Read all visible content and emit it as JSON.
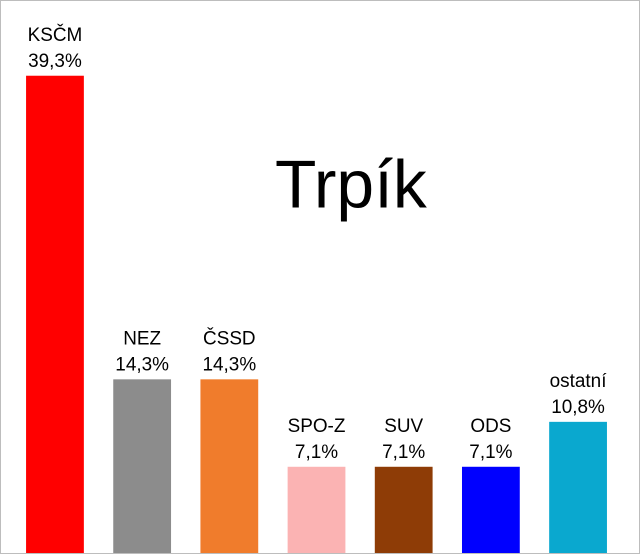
{
  "chart_data": {
    "type": "bar",
    "title": "Trpík",
    "categories": [
      "KSČM",
      "NEZ",
      "ČSSD",
      "SPO-Z",
      "SUV",
      "ODS",
      "ostatní"
    ],
    "values": [
      39.3,
      14.3,
      14.3,
      7.1,
      7.1,
      7.1,
      10.8
    ],
    "value_labels": [
      "39,3%",
      "14,3%",
      "14,3%",
      "7,1%",
      "7,1%",
      "7,1%",
      "10,8%"
    ],
    "colors": [
      "#ff0000",
      "#8c8c8c",
      "#f07c2c",
      "#fbb3b3",
      "#8e3c06",
      "#0000ff",
      "#0aa8cf"
    ],
    "ylim": [
      0,
      39.3
    ],
    "grid": false,
    "legend": "none"
  }
}
